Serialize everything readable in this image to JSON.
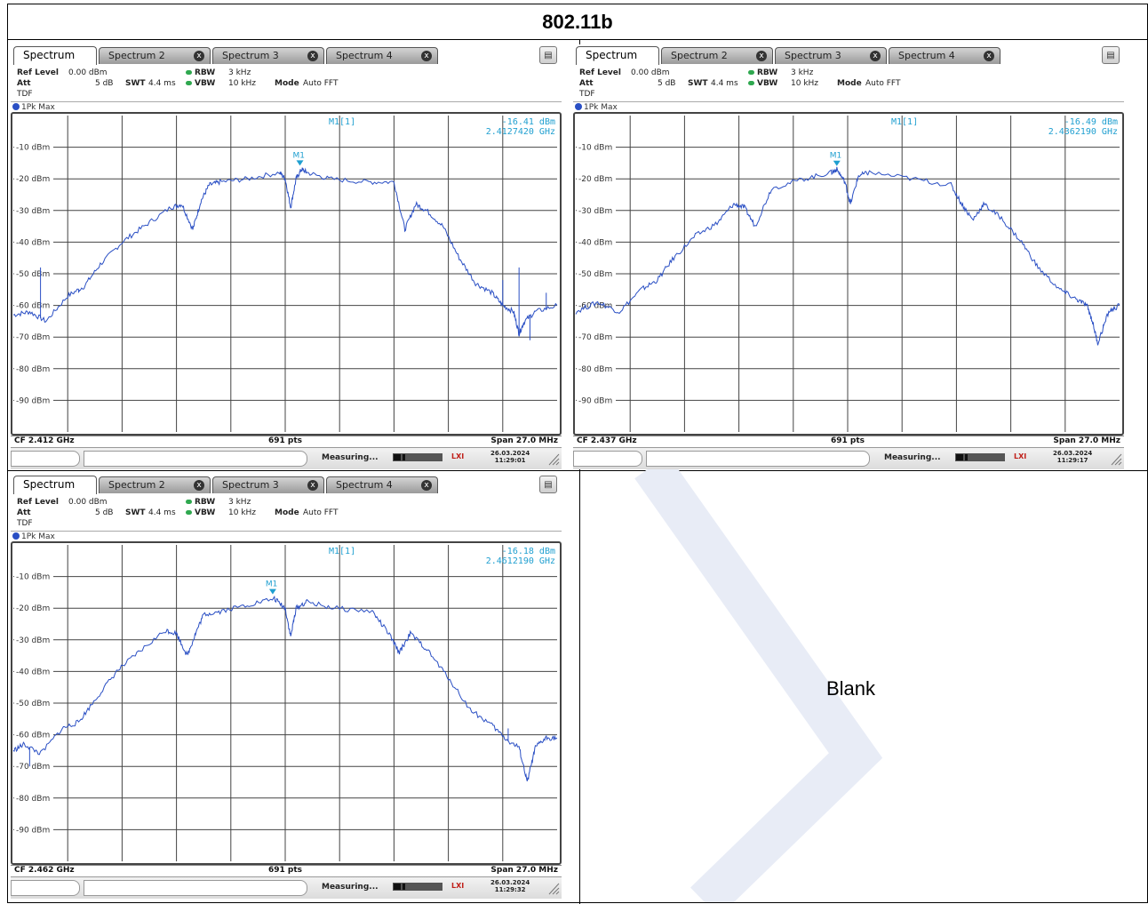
{
  "page": {
    "title": "802.11b",
    "blank_label": "Blank"
  },
  "panel_common": {
    "tabs": [
      "Spectrum",
      "Spectrum 2",
      "Spectrum 3",
      "Spectrum 4"
    ],
    "tab_close_glyph": "x",
    "ref_level_label": "Ref Level",
    "ref_level_value": "0.00 dBm",
    "att_label": "Att",
    "att_value": "5 dB",
    "swt_label": "SWT",
    "swt_value": "4.4 ms",
    "rbw_label": "RBW",
    "rbw_value": "3 kHz",
    "vbw_label": "VBW",
    "vbw_value": "10 kHz",
    "mode_label": "Mode",
    "mode_value": "Auto FFT",
    "tdf_label": "TDF",
    "trace_label": "1Pk Max",
    "marker_readout_label": "M1[1]",
    "marker_label": "M1",
    "points_label": "691 pts",
    "span_label": "Span 27.0 MHz",
    "status_text": "Measuring...",
    "lxi_label": "LXI",
    "date_label": "26.03.2024"
  },
  "colors": {
    "trace": "#2a4fc4",
    "marker": "#1f9fd0",
    "grid": "#444444",
    "active_tab": "#ffffff"
  },
  "chart_data": [
    {
      "type": "line",
      "cf_label": "CF 2.412 GHz",
      "marker_level": "-16.41 dBm",
      "marker_freq": "2.4127420 GHz",
      "time_label": "11:29:01",
      "ylim": [
        -100,
        0
      ],
      "ytick_labels": [
        "-10 dBm",
        "-20 dBm",
        "-30 dBm",
        "-40 dBm",
        "-50 dBm",
        "-60 dBm",
        "-70 dBm",
        "-80 dBm",
        "-90 dBm"
      ],
      "xlim": [
        0,
        10
      ],
      "marker_x": 5.27,
      "marker_y": -16.4,
      "x": [
        0,
        0.3,
        0.6,
        1.0,
        1.3,
        1.6,
        2.0,
        2.4,
        2.9,
        3.1,
        3.3,
        3.45,
        3.6,
        3.8,
        4.3,
        4.9,
        5.0,
        5.1,
        5.2,
        5.3,
        5.4,
        5.8,
        6.5,
        7.0,
        7.2,
        7.4,
        7.6,
        7.9,
        8.2,
        8.5,
        8.8,
        9.0,
        9.2,
        9.3,
        9.4,
        9.6,
        10.0
      ],
      "y": [
        -63,
        -62,
        -65,
        -57,
        -54,
        -47,
        -40,
        -35,
        -29,
        -28,
        -36,
        -27,
        -22,
        -21,
        -20,
        -18,
        -20,
        -29,
        -20,
        -17,
        -18,
        -20,
        -21,
        -21,
        -36,
        -28,
        -30,
        -35,
        -45,
        -53,
        -56,
        -60,
        -62,
        -69,
        -65,
        -62,
        -60
      ],
      "spikes": [
        [
          0.5,
          -48
        ],
        [
          1.2,
          -56
        ],
        [
          9.0,
          -52
        ],
        [
          9.3,
          -48
        ],
        [
          9.5,
          -71
        ],
        [
          9.8,
          -56
        ]
      ]
    },
    {
      "type": "line",
      "cf_label": "CF 2.437 GHz",
      "marker_level": "-16.49 dBm",
      "marker_freq": "2.4362190 GHz",
      "time_label": "11:29:17",
      "ylim": [
        -100,
        0
      ],
      "ytick_labels": [
        "-10 dBm",
        "-20 dBm",
        "-30 dBm",
        "-40 dBm",
        "-50 dBm",
        "-60 dBm",
        "-70 dBm",
        "-80 dBm",
        "-90 dBm"
      ],
      "xlim": [
        0,
        10
      ],
      "marker_x": 4.8,
      "marker_y": -16.5,
      "x": [
        0,
        0.4,
        0.8,
        1.2,
        1.5,
        1.8,
        2.2,
        2.6,
        2.9,
        3.1,
        3.3,
        3.6,
        4.2,
        4.7,
        4.8,
        4.95,
        5.05,
        5.2,
        5.4,
        6.2,
        6.9,
        7.1,
        7.3,
        7.5,
        7.8,
        8.2,
        8.5,
        8.9,
        9.2,
        9.4,
        9.5,
        9.6,
        9.8,
        10.0
      ],
      "y": [
        -62,
        -59,
        -62,
        -55,
        -52,
        -45,
        -38,
        -34,
        -28,
        -29,
        -35,
        -23,
        -20,
        -18,
        -17,
        -21,
        -28,
        -19,
        -18,
        -20,
        -22,
        -28,
        -33,
        -28,
        -32,
        -40,
        -48,
        -55,
        -58,
        -60,
        -65,
        -72,
        -62,
        -60
      ],
      "spikes": [
        [
          9.0,
          -55
        ],
        [
          9.7,
          -66
        ]
      ]
    },
    {
      "type": "line",
      "cf_label": "CF 2.462 GHz",
      "marker_level": "-16.18 dBm",
      "marker_freq": "2.4612190 GHz",
      "time_label": "11:29:32",
      "ylim": [
        -100,
        0
      ],
      "ytick_labels": [
        "-10 dBm",
        "-20 dBm",
        "-30 dBm",
        "-40 dBm",
        "-50 dBm",
        "-60 dBm",
        "-70 dBm",
        "-80 dBm",
        "-90 dBm"
      ],
      "xlim": [
        0,
        10
      ],
      "marker_x": 4.77,
      "marker_y": -16.2,
      "x": [
        0,
        0.2,
        0.5,
        0.9,
        1.2,
        1.5,
        1.9,
        2.3,
        2.8,
        3.0,
        3.2,
        3.35,
        3.5,
        3.8,
        4.3,
        4.8,
        5.0,
        5.1,
        5.2,
        5.4,
        5.9,
        6.6,
        6.9,
        7.1,
        7.3,
        7.6,
        8.0,
        8.4,
        8.8,
        9.1,
        9.3,
        9.45,
        9.6,
        9.8,
        10.0
      ],
      "y": [
        -65,
        -63,
        -66,
        -58,
        -56,
        -49,
        -40,
        -34,
        -27,
        -28,
        -35,
        -28,
        -22,
        -21,
        -19,
        -17,
        -20,
        -29,
        -20,
        -18,
        -20,
        -21,
        -28,
        -34,
        -28,
        -33,
        -42,
        -52,
        -57,
        -62,
        -64,
        -75,
        -64,
        -61,
        -61
      ],
      "spikes": [
        [
          0.3,
          -70
        ],
        [
          9.1,
          -58
        ]
      ]
    }
  ]
}
